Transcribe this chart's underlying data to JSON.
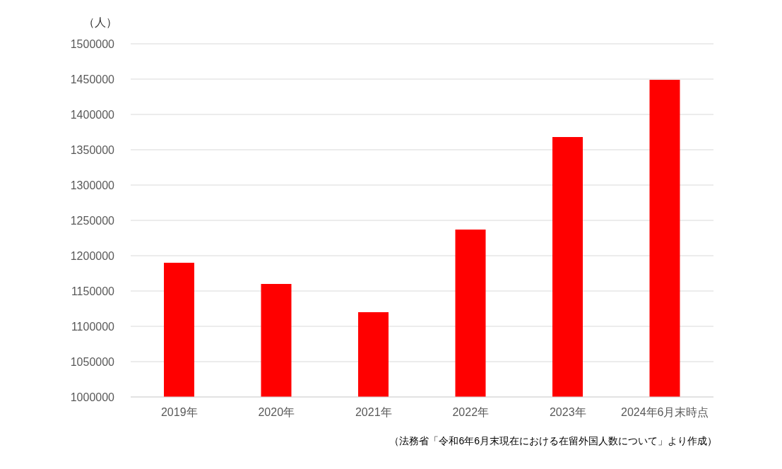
{
  "chart_data": {
    "type": "bar",
    "ylabel": "（人）",
    "categories": [
      "2019年",
      "2020年",
      "2021年",
      "2022年",
      "2023年",
      "2024年6月末時点"
    ],
    "values": [
      1190000,
      1160000,
      1120000,
      1237000,
      1368000,
      1449000
    ],
    "color": "#ff0000",
    "ylim": [
      1000000,
      1500000
    ],
    "yticks": [
      1000000,
      1050000,
      1100000,
      1150000,
      1200000,
      1250000,
      1300000,
      1350000,
      1400000,
      1450000,
      1500000
    ],
    "grid": "y",
    "legend": false,
    "annotations": [
      "（法務省「令和6年6月末現在における在留外国人数について」より作成）"
    ]
  }
}
